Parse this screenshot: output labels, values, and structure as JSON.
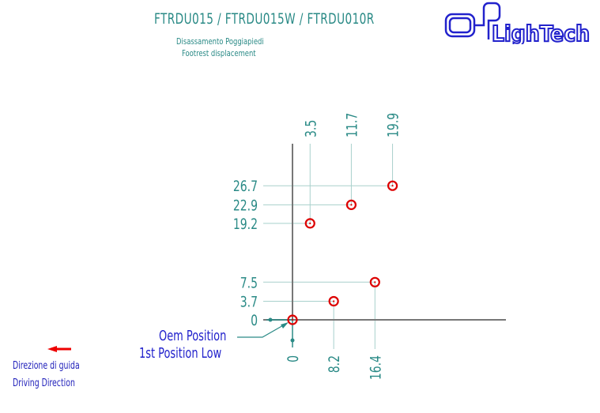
{
  "header": {
    "title": "FTRDU015 / FTRDU015W / FTRDU010R",
    "subtitle_it": "Disassamento Poggiapiedi",
    "subtitle_en": "Footrest displacement"
  },
  "logo": {
    "text": "LighTech",
    "color": "#2222cc"
  },
  "legend": {
    "direction_it": "Direzione di guida",
    "direction_en": "Driving Direction",
    "arrow_color": "#ee0000",
    "arrow_icon": "arrow-left-icon"
  },
  "annotation": {
    "oem": "Oem Position",
    "low": "1st Position Low"
  },
  "colors": {
    "label": "#2a8a86",
    "marker": "#dd0000",
    "axis": "#777777",
    "guide": "#a8d0cc"
  },
  "chart_data": {
    "type": "scatter",
    "x_ticks": [
      "3.5",
      "11.7",
      "19.9",
      "0",
      "8.2",
      "16.4"
    ],
    "y_ticks": [
      "26.7",
      "22.9",
      "19.2",
      "7.5",
      "3.7",
      "0"
    ],
    "points": [
      {
        "x": 0,
        "y": 0
      },
      {
        "x": 3.5,
        "y": 19.2
      },
      {
        "x": 11.7,
        "y": 22.9
      },
      {
        "x": 19.9,
        "y": 26.7
      },
      {
        "x": 8.2,
        "y": 3.7
      },
      {
        "x": 16.4,
        "y": 7.5
      }
    ]
  }
}
